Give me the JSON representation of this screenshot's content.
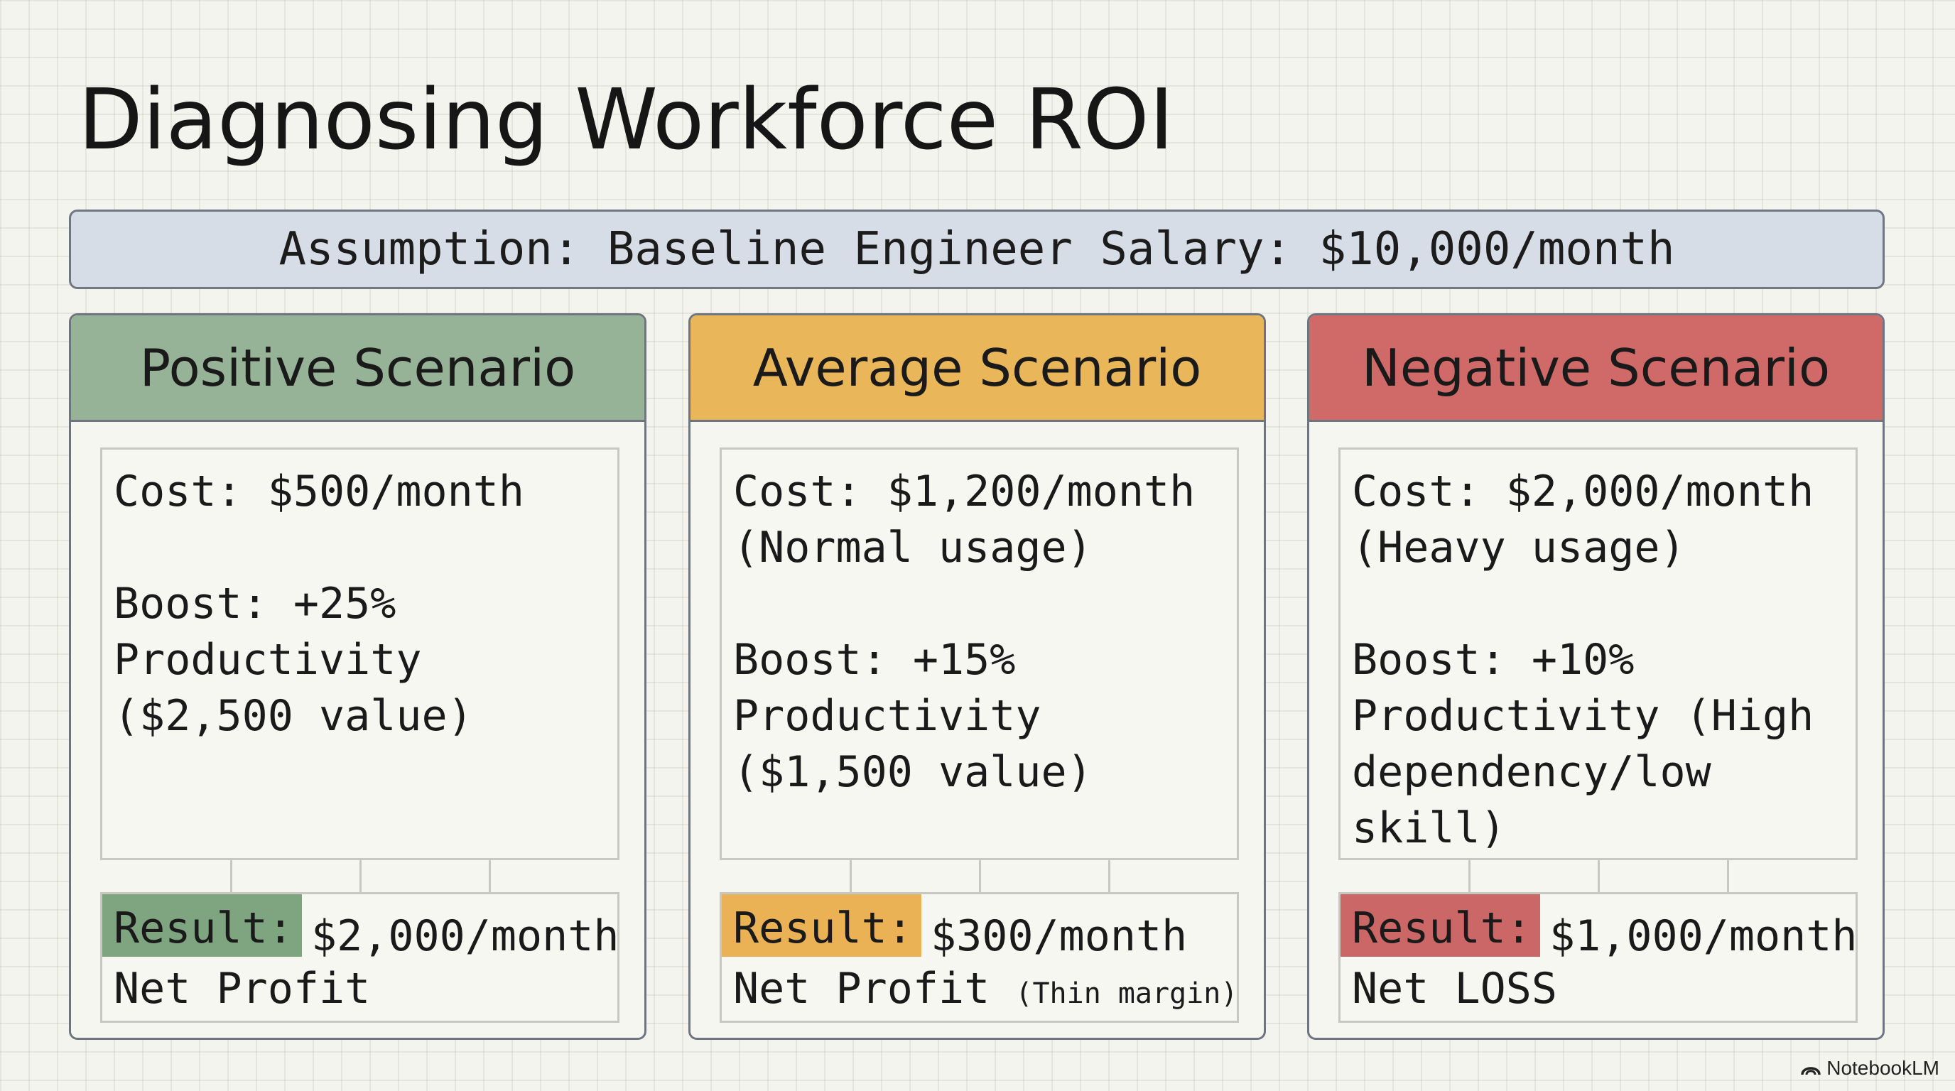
{
  "title": "Diagnosing Workforce ROI",
  "assumption": "Assumption: Baseline Engineer Salary: $10,000/month",
  "colors": {
    "positive_header": "#97b397",
    "positive_tag": "#7ea57f",
    "average_header": "#e9b65a",
    "average_tag": "#eab155",
    "negative_header": "#cf6a68",
    "negative_tag": "#cb6766",
    "assumption_bg": "#d7dde6"
  },
  "scenarios": [
    {
      "header": "Positive Scenario",
      "cost": "Cost: $500/month",
      "boost": "Boost: +25%\nProductivity\n($2,500 value)",
      "result_label": "Result:",
      "result_value": "$2,000/month",
      "result_line2": "Net Profit",
      "result_note": ""
    },
    {
      "header": "Average Scenario",
      "cost": "Cost: $1,200/month\n(Normal usage)",
      "boost": "Boost: +15%\nProductivity\n($1,500 value)",
      "result_label": "Result:",
      "result_value": "$300/month",
      "result_line2": "Net Profit",
      "result_note": "(Thin margin)"
    },
    {
      "header": "Negative Scenario",
      "cost": "Cost: $2,000/month\n(Heavy usage)",
      "boost": "Boost: +10%\nProductivity (High\ndependency/low\nskill)",
      "result_label": "Result:",
      "result_value": "$1,000/month",
      "result_line2": "Net LOSS",
      "result_note": ""
    }
  ],
  "brand": {
    "icon": "notebooklm-logo-icon",
    "label": "NotebookLM"
  }
}
